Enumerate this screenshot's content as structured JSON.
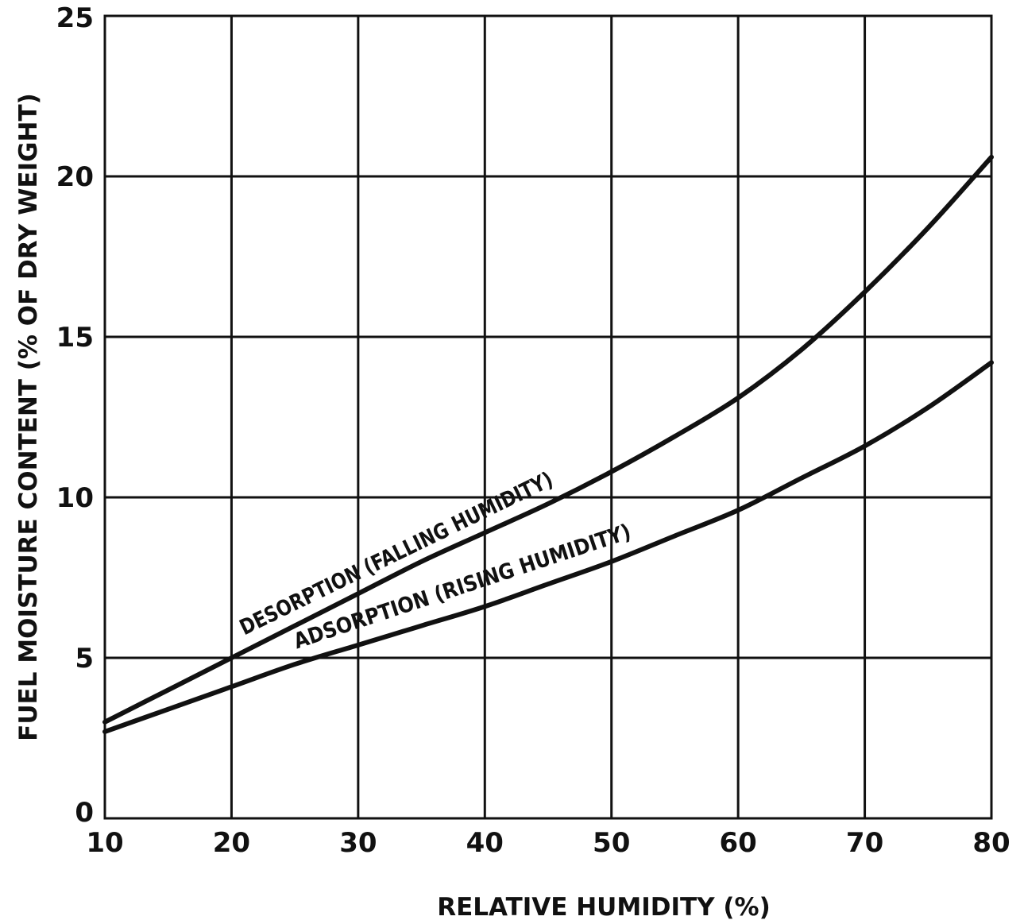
{
  "chart_data": {
    "type": "line",
    "title": "",
    "xlabel": "RELATIVE HUMIDITY (%)",
    "ylabel": "FUEL MOISTURE CONTENT (% OF DRY WEIGHT)",
    "xlim": [
      10,
      80
    ],
    "ylim": [
      0,
      25
    ],
    "xticks": [
      10,
      20,
      30,
      40,
      50,
      60,
      70,
      80
    ],
    "yticks": [
      0,
      5,
      10,
      15,
      20,
      25
    ],
    "grid": true,
    "legend": "none",
    "line_color": "#111111",
    "series": [
      {
        "name": "DESORPTION (FALLING HUMIDITY)",
        "x": [
          10,
          15,
          20,
          25,
          30,
          35,
          40,
          45,
          50,
          55,
          60,
          65,
          70,
          75,
          80
        ],
        "y": [
          3.0,
          4.0,
          5.0,
          6.0,
          7.0,
          8.0,
          8.9,
          9.8,
          10.8,
          11.9,
          13.1,
          14.6,
          16.4,
          18.4,
          20.6
        ]
      },
      {
        "name": "ADSORPTION (RISING HUMIDITY)",
        "x": [
          10,
          15,
          20,
          25,
          30,
          35,
          40,
          45,
          50,
          55,
          60,
          65,
          70,
          75,
          80
        ],
        "y": [
          2.7,
          3.4,
          4.1,
          4.8,
          5.4,
          6.0,
          6.6,
          7.3,
          8.0,
          8.8,
          9.6,
          10.6,
          11.6,
          12.8,
          14.2
        ]
      }
    ]
  }
}
